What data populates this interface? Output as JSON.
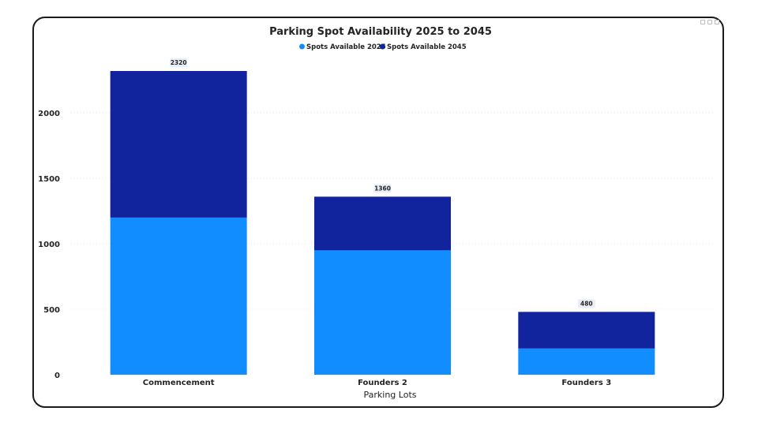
{
  "chart_data": {
    "type": "bar",
    "stacked": true,
    "title": "Parking Spot Availability 2025 to 2045",
    "xlabel": "Parking Lots",
    "ylabel": "",
    "categories": [
      "Commencement",
      "Founders 2",
      "Founders 3"
    ],
    "series": [
      {
        "name": "Spots Available 2025",
        "values": [
          1200,
          950,
          200
        ],
        "color": "#118dff"
      },
      {
        "name": "Spots Available 2045",
        "values": [
          1120,
          410,
          280
        ],
        "color": "#12239e"
      }
    ],
    "totals": [
      2320,
      1360,
      480
    ],
    "ylim": [
      0,
      2320
    ],
    "yticks": [
      0,
      500,
      1000,
      1500,
      2000
    ],
    "grid": true,
    "legend_position": "top-center"
  }
}
